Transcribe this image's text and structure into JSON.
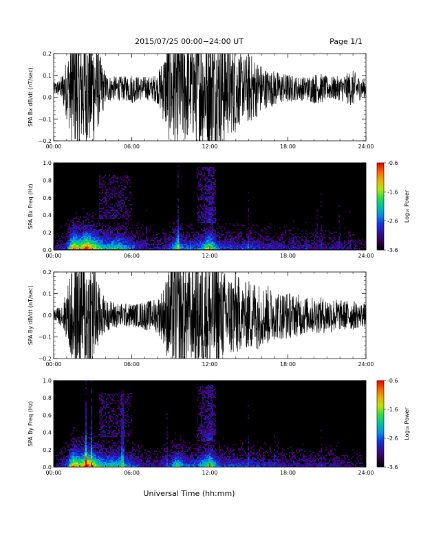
{
  "header": {
    "title": "2015/07/25  00:00−24:00 UT",
    "page": "Page 1/1"
  },
  "x_axis": {
    "label": "Universal Time (hh:mm)",
    "ticks": [
      "00:00",
      "06:00",
      "12:00",
      "18:00",
      "24:00"
    ]
  },
  "colorbar": {
    "label": "Log₁₀ Power",
    "ticks": [
      "-0.6",
      "-1.6",
      "-2.6",
      "-3.6"
    ]
  },
  "chart_data": [
    {
      "type": "line",
      "ylabel": "SPA Bx dB/dt (nT/sec)",
      "xlim": [
        0,
        24
      ],
      "ylim": [
        -0.2,
        0.2
      ],
      "yticks": [
        "0.2",
        "0.1",
        "0.0",
        "−0.1",
        "−0.2"
      ],
      "series": [
        {
          "x": [
            0,
            0.5,
            1,
            1.5,
            2,
            2.5,
            3,
            3.5,
            4,
            4.5,
            5,
            5.5,
            6,
            6.5,
            7,
            7.5,
            8,
            8.5,
            9,
            9.5,
            10,
            10.5,
            11,
            11.5,
            12,
            12.5,
            13,
            13.5,
            14,
            14.5,
            15,
            15.5,
            16,
            16.5,
            17,
            17.5,
            18,
            18.5,
            19,
            19.5,
            20,
            20.5,
            21,
            21.5,
            22,
            22.5,
            23,
            23.5,
            24
          ],
          "amplitude": [
            0.02,
            0.03,
            0.1,
            0.2,
            0.2,
            0.2,
            0.2,
            0.12,
            0.05,
            0.04,
            0.04,
            0.04,
            0.05,
            0.04,
            0.04,
            0.04,
            0.05,
            0.12,
            0.2,
            0.2,
            0.2,
            0.15,
            0.2,
            0.2,
            0.2,
            0.2,
            0.2,
            0.15,
            0.15,
            0.1,
            0.12,
            0.1,
            0.08,
            0.06,
            0.06,
            0.05,
            0.05,
            0.04,
            0.04,
            0.04,
            0.05,
            0.05,
            0.04,
            0.04,
            0.04,
            0.05,
            0.06,
            0.04,
            0.03
          ],
          "offset": 0.04
        }
      ]
    },
    {
      "type": "heatmap",
      "ylabel": "SPA Bx Freq (Hz)",
      "xlim": [
        0,
        24
      ],
      "ylim": [
        0.0,
        1.0
      ],
      "yticks": [
        "1.0",
        "0.8",
        "0.6",
        "0.4",
        "0.2",
        "0.0"
      ],
      "zlim": [
        -3.6,
        -0.6
      ],
      "zlabel": "Log₁₀ Power"
    },
    {
      "type": "line",
      "ylabel": "SPA By dB/dt (nT/sec)",
      "xlim": [
        0,
        24
      ],
      "ylim": [
        -0.2,
        0.2
      ],
      "yticks": [
        "0.2",
        "0.1",
        "0.0",
        "−0.1",
        "−0.2"
      ],
      "series": [
        {
          "x": [
            0,
            0.5,
            1,
            1.5,
            2,
            2.5,
            3,
            3.5,
            4,
            4.5,
            5,
            5.5,
            6,
            6.5,
            7,
            7.5,
            8,
            8.5,
            9,
            9.5,
            10,
            10.5,
            11,
            11.5,
            12,
            12.5,
            13,
            13.5,
            14,
            14.5,
            15,
            15.5,
            16,
            16.5,
            17,
            17.5,
            18,
            18.5,
            19,
            19.5,
            20,
            20.5,
            21,
            21.5,
            22,
            22.5,
            23,
            23.5,
            24
          ],
          "amplitude": [
            0.02,
            0.03,
            0.08,
            0.2,
            0.2,
            0.2,
            0.2,
            0.1,
            0.05,
            0.05,
            0.04,
            0.04,
            0.04,
            0.04,
            0.05,
            0.05,
            0.06,
            0.1,
            0.2,
            0.2,
            0.2,
            0.15,
            0.18,
            0.2,
            0.2,
            0.2,
            0.15,
            0.14,
            0.15,
            0.1,
            0.12,
            0.12,
            0.1,
            0.1,
            0.08,
            0.08,
            0.08,
            0.07,
            0.07,
            0.06,
            0.06,
            0.06,
            0.06,
            0.06,
            0.05,
            0.05,
            0.05,
            0.04,
            0.04
          ],
          "offset": 0.0
        }
      ]
    },
    {
      "type": "heatmap",
      "ylabel": "SPA By Freq (Hz)",
      "xlim": [
        0,
        24
      ],
      "ylim": [
        0.0,
        1.0
      ],
      "yticks": [
        "1.0",
        "0.8",
        "0.6",
        "0.4",
        "0.2",
        "0.0"
      ],
      "zlim": [
        -3.6,
        -0.6
      ],
      "zlabel": "Log₁₀ Power"
    }
  ]
}
